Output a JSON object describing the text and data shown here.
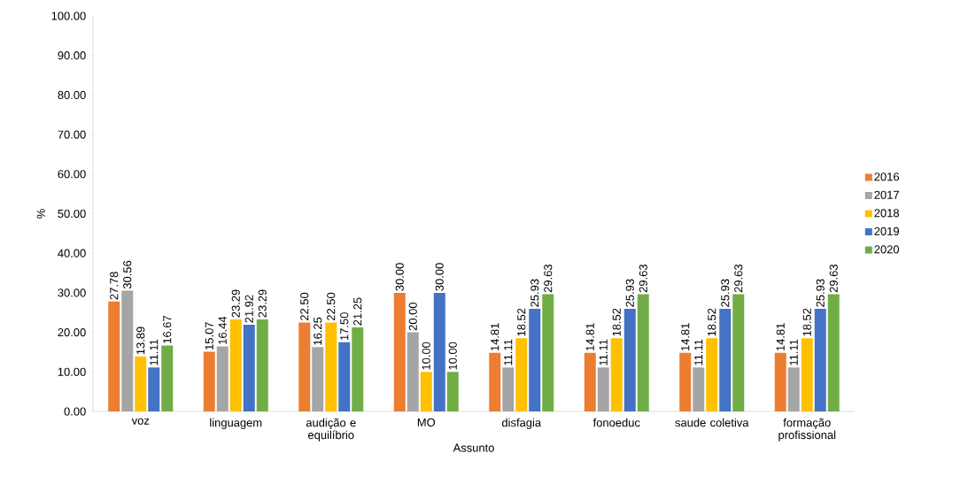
{
  "chart_data": {
    "type": "bar",
    "xlabel": "Assunto",
    "ylabel": "%",
    "categories": [
      "voz",
      "linguagem",
      "audição e equilíbrio",
      "MO",
      "disfagia",
      "fonoeduc",
      "saude coletiva",
      "formação profissional"
    ],
    "series": [
      {
        "name": "2016",
        "color": "#ed7d31",
        "values": [
          27.78,
          15.07,
          22.5,
          30.0,
          14.81,
          14.81,
          14.81,
          14.81
        ],
        "value_labels": [
          "27.78",
          "15.07",
          "22.50",
          "30.00",
          "14.81",
          "14.81",
          "14.81",
          "14.81"
        ]
      },
      {
        "name": "2017",
        "color": "#a5a5a5",
        "values": [
          30.56,
          16.44,
          16.25,
          20.0,
          11.11,
          11.11,
          11.11,
          11.11
        ],
        "value_labels": [
          "30.56",
          "16.44",
          "16.25",
          "20.00",
          "11.11",
          "11.11",
          "11.11",
          "11.11"
        ]
      },
      {
        "name": "2018",
        "color": "#ffc000",
        "values": [
          13.89,
          23.29,
          22.5,
          10.0,
          18.52,
          18.52,
          18.52,
          18.52
        ],
        "value_labels": [
          "13.89",
          "23.29",
          "22.50",
          "10.00",
          "18.52",
          "18.52",
          "18.52",
          "18.52"
        ]
      },
      {
        "name": "2019",
        "color": "#4472c4",
        "values": [
          11.11,
          21.92,
          17.5,
          30.0,
          25.93,
          25.93,
          25.93,
          25.93
        ],
        "value_labels": [
          "11.11",
          "21.92",
          "17.50",
          "30.00",
          "25.93",
          "25.93",
          "25.93",
          "25.93"
        ]
      },
      {
        "name": "2020",
        "color": "#70ad47",
        "values": [
          16.67,
          23.29,
          21.25,
          10.0,
          29.63,
          29.63,
          29.63,
          29.63
        ],
        "value_labels": [
          "16.67",
          "23.29",
          "21.25",
          "10.00",
          "29.63",
          "29.63",
          "29.63",
          "29.63"
        ]
      }
    ],
    "ylim": [
      0,
      100
    ],
    "yticks": [
      {
        "value": 0,
        "label": "0.00"
      },
      {
        "value": 10,
        "label": "10.00"
      },
      {
        "value": 20,
        "label": "20.00"
      },
      {
        "value": 30,
        "label": "30.00"
      },
      {
        "value": 40,
        "label": "40.00"
      },
      {
        "value": 50,
        "label": "50.00"
      },
      {
        "value": 60,
        "label": "60.00"
      },
      {
        "value": 70,
        "label": "70.00"
      },
      {
        "value": 80,
        "label": "80.00"
      },
      {
        "value": 90,
        "label": "90.00"
      },
      {
        "value": 100,
        "label": "100.00"
      }
    ],
    "grid": false,
    "legend": "right"
  }
}
